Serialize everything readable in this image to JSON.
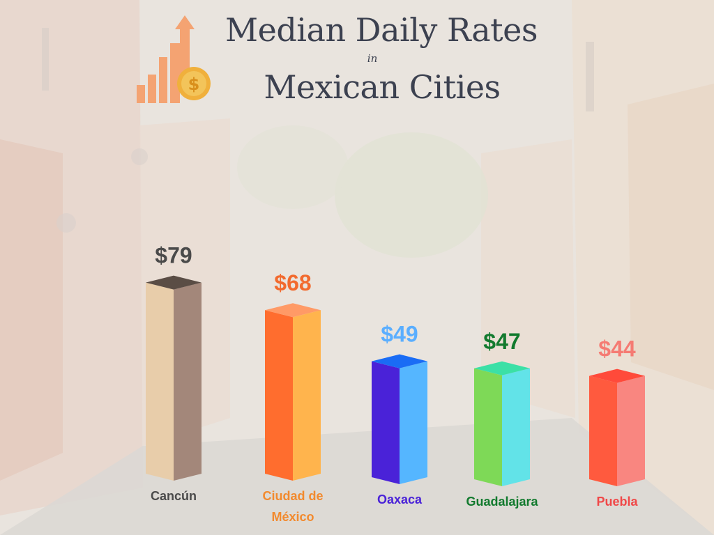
{
  "title_line1": "Median Daily Rates",
  "title_connector": "in",
  "title_line2": "Mexican Cities",
  "chart_data": {
    "type": "bar",
    "title": "Median Daily Rates in Mexican Cities",
    "xlabel": "",
    "ylabel": "",
    "ylim": [
      0,
      90
    ],
    "grid": false,
    "legend": "none",
    "categories": [
      "Cancún",
      "Ciudad de México",
      "Oaxaca",
      "Guadalajara",
      "Puebla"
    ],
    "values": [
      79,
      68,
      49,
      47,
      44
    ],
    "data_labels": [
      "$79",
      "$68",
      "$49",
      "$47",
      "$44"
    ],
    "bar_colors": [
      {
        "front": "#e8cdaa",
        "side": "#a3877a",
        "top": "#5a4d45",
        "label": "#4a4a4a"
      },
      {
        "front": "#ff6d2e",
        "side": "#ffb44d",
        "top": "#ff9a66",
        "label": "#f26a2e"
      },
      {
        "front": "#4a22d8",
        "side": "#55b6ff",
        "top": "#1a6cf5",
        "label": "#5aaeff"
      },
      {
        "front": "#7ed957",
        "side": "#62e3e8",
        "top": "#3be0a6",
        "label": "#127a2e"
      },
      {
        "front": "#ff5a3e",
        "side": "#f98680",
        "top": "#ff4a3a",
        "label": "#f57b73"
      }
    ],
    "category_label_colors": [
      "#4a4a4a",
      "#f28a2e",
      "#4a22d8",
      "#127a2e",
      "#f04848"
    ]
  }
}
